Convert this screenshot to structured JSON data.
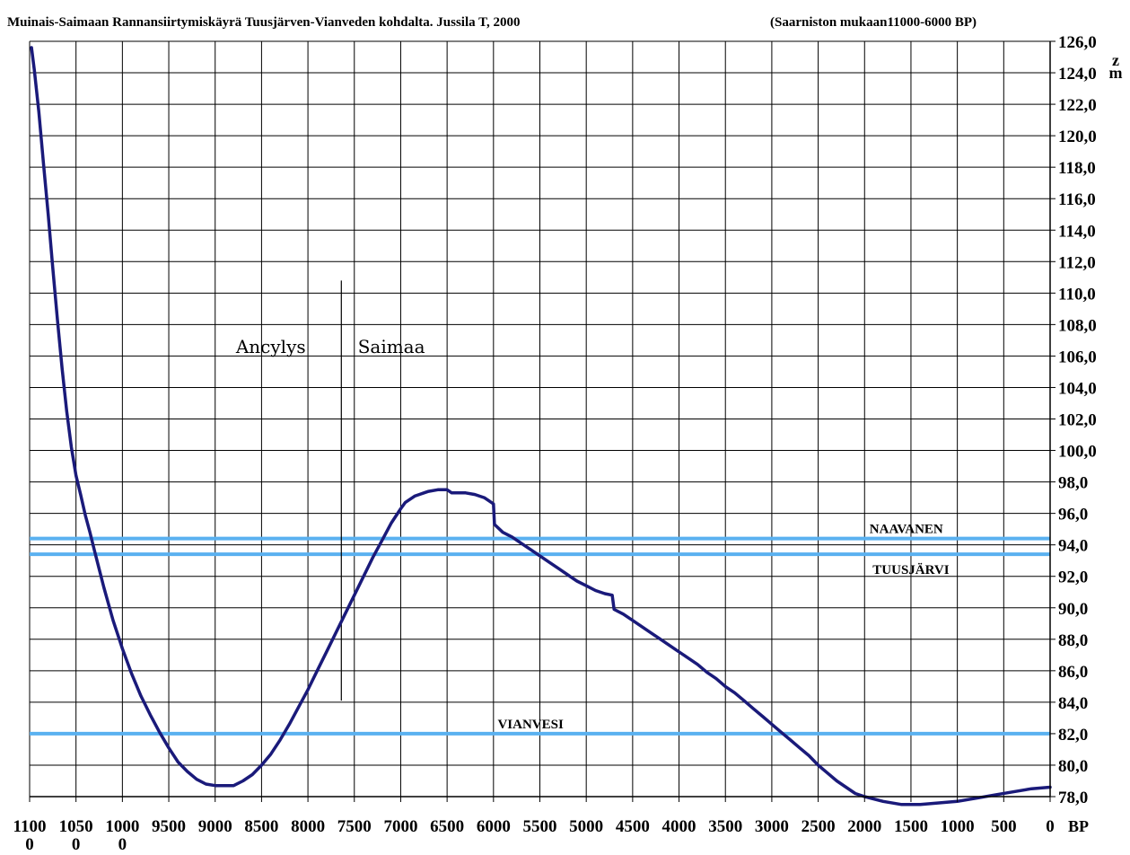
{
  "chart_data": {
    "type": "line",
    "title": "Muinais-Saimaan Rannansiirtymiskäyrä Tuusjärven-Vianveden kohdalta. Jussila T, 2000",
    "subtitle": "(Saarniston mukaan11000-6000 BP)",
    "xlabel": "BP",
    "ylabel": "z\nm",
    "ylabel_lines": [
      "z",
      "m"
    ],
    "x_reversed": true,
    "xlim": [
      11000,
      0
    ],
    "ylim": [
      78,
      126
    ],
    "grid": true,
    "x_tick_labels": [
      {
        "value": 11000,
        "lines": [
          "1100",
          "0"
        ]
      },
      {
        "value": 10500,
        "lines": [
          "1050",
          "0"
        ]
      },
      {
        "value": 10000,
        "lines": [
          "1000",
          "0"
        ]
      },
      {
        "value": 9500,
        "lines": [
          "9500"
        ]
      },
      {
        "value": 9000,
        "lines": [
          "9000"
        ]
      },
      {
        "value": 8500,
        "lines": [
          "8500"
        ]
      },
      {
        "value": 8000,
        "lines": [
          "8000"
        ]
      },
      {
        "value": 7500,
        "lines": [
          "7500"
        ]
      },
      {
        "value": 7000,
        "lines": [
          "7000"
        ]
      },
      {
        "value": 6500,
        "lines": [
          "6500"
        ]
      },
      {
        "value": 6000,
        "lines": [
          "6000"
        ]
      },
      {
        "value": 5500,
        "lines": [
          "5500"
        ]
      },
      {
        "value": 5000,
        "lines": [
          "5000"
        ]
      },
      {
        "value": 4500,
        "lines": [
          "4500"
        ]
      },
      {
        "value": 4000,
        "lines": [
          "4000"
        ]
      },
      {
        "value": 3500,
        "lines": [
          "3500"
        ]
      },
      {
        "value": 3000,
        "lines": [
          "3000"
        ]
      },
      {
        "value": 2500,
        "lines": [
          "2500"
        ]
      },
      {
        "value": 2000,
        "lines": [
          "2000"
        ]
      },
      {
        "value": 1500,
        "lines": [
          "1500"
        ]
      },
      {
        "value": 1000,
        "lines": [
          "1000"
        ]
      },
      {
        "value": 500,
        "lines": [
          "500"
        ]
      },
      {
        "value": 0,
        "lines": [
          "0"
        ]
      }
    ],
    "y_tick_labels": [
      "78,0",
      "80,0",
      "82,0",
      "84,0",
      "86,0",
      "88,0",
      "90,0",
      "92,0",
      "94,0",
      "96,0",
      "98,0",
      "100,0",
      "102,0",
      "104,0",
      "106,0",
      "108,0",
      "110,0",
      "112,0",
      "114,0",
      "116,0",
      "118,0",
      "120,0",
      "122,0",
      "124,0",
      "126,0"
    ],
    "y_tick_values": [
      78,
      80,
      82,
      84,
      86,
      88,
      90,
      92,
      94,
      96,
      98,
      100,
      102,
      104,
      106,
      108,
      110,
      112,
      114,
      116,
      118,
      120,
      122,
      124,
      126
    ],
    "series": [
      {
        "color": "#1a1a7a",
        "x": [
          10980,
          10950,
          10900,
          10850,
          10800,
          10750,
          10700,
          10650,
          10600,
          10550,
          10500,
          10450,
          10400,
          10350,
          10300,
          10200,
          10100,
          10000,
          9900,
          9800,
          9700,
          9600,
          9500,
          9400,
          9300,
          9200,
          9100,
          9000,
          8900,
          8850,
          8800,
          8700,
          8600,
          8500,
          8400,
          8300,
          8200,
          8100,
          8000,
          7900,
          7800,
          7700,
          7600,
          7500,
          7400,
          7300,
          7200,
          7100,
          7000,
          6950,
          6900,
          6850,
          6800,
          6750,
          6700,
          6600,
          6500,
          6450,
          6400,
          6300,
          6200,
          6100,
          6050,
          6000,
          5990,
          5900,
          5800,
          5700,
          5600,
          5500,
          5400,
          5300,
          5200,
          5100,
          5000,
          4900,
          4800,
          4720,
          4700,
          4600,
          4500,
          4400,
          4300,
          4200,
          4100,
          4000,
          3900,
          3800,
          3700,
          3600,
          3500,
          3400,
          3300,
          3200,
          3100,
          3000,
          2900,
          2800,
          2700,
          2600,
          2500,
          2400,
          2300,
          2200,
          2100,
          2000,
          1800,
          1600,
          1400,
          1200,
          1000,
          800,
          600,
          400,
          200,
          0
        ],
        "y": [
          125.6,
          124.2,
          121.5,
          118.2,
          115.0,
          111.6,
          108.3,
          105.2,
          102.5,
          100.2,
          98.4,
          97.2,
          95.9,
          94.8,
          93.6,
          91.3,
          89.2,
          87.4,
          85.8,
          84.4,
          83.2,
          82.1,
          81.1,
          80.2,
          79.6,
          79.1,
          78.8,
          78.7,
          78.7,
          78.7,
          78.7,
          79.0,
          79.4,
          80.0,
          80.7,
          81.6,
          82.6,
          83.7,
          84.8,
          86.0,
          87.2,
          88.4,
          89.6,
          90.8,
          92.0,
          93.2,
          94.3,
          95.4,
          96.3,
          96.7,
          96.9,
          97.1,
          97.2,
          97.3,
          97.4,
          97.5,
          97.5,
          97.3,
          97.3,
          97.3,
          97.2,
          97.0,
          96.8,
          96.6,
          95.3,
          94.8,
          94.5,
          94.1,
          93.7,
          93.3,
          92.9,
          92.5,
          92.1,
          91.7,
          91.4,
          91.1,
          90.9,
          90.8,
          89.9,
          89.6,
          89.2,
          88.8,
          88.4,
          88.0,
          87.6,
          87.2,
          86.8,
          86.4,
          85.9,
          85.5,
          85.0,
          84.6,
          84.1,
          83.6,
          83.1,
          82.6,
          82.1,
          81.6,
          81.1,
          80.6,
          80.0,
          79.5,
          79.0,
          78.6,
          78.2,
          78.0,
          77.7,
          77.5,
          77.5,
          77.6,
          77.7,
          77.9,
          78.1,
          78.3,
          78.5,
          78.6
        ]
      }
    ],
    "reference_lines": [
      {
        "label": "NAAVANEN",
        "y": 94.4,
        "color": "#5ab1f0",
        "label_x": 1550,
        "label_pos": "above"
      },
      {
        "label": "TUUSJÄRVI",
        "y": 93.4,
        "color": "#5ab1f0",
        "label_x": 1500,
        "label_pos": "below"
      },
      {
        "label": "VIANVESI",
        "y": 82.0,
        "color": "#5ab1f0",
        "label_x": 5600,
        "label_pos": "above"
      }
    ],
    "divider": {
      "x": 7640,
      "y_top": 110.8,
      "y_bottom": 84.1
    },
    "period_labels": [
      {
        "text": "Ancylys",
        "x": 8400,
        "y": 106.2
      },
      {
        "text": "Saimaa",
        "x": 7100,
        "y": 106.2
      }
    ]
  }
}
